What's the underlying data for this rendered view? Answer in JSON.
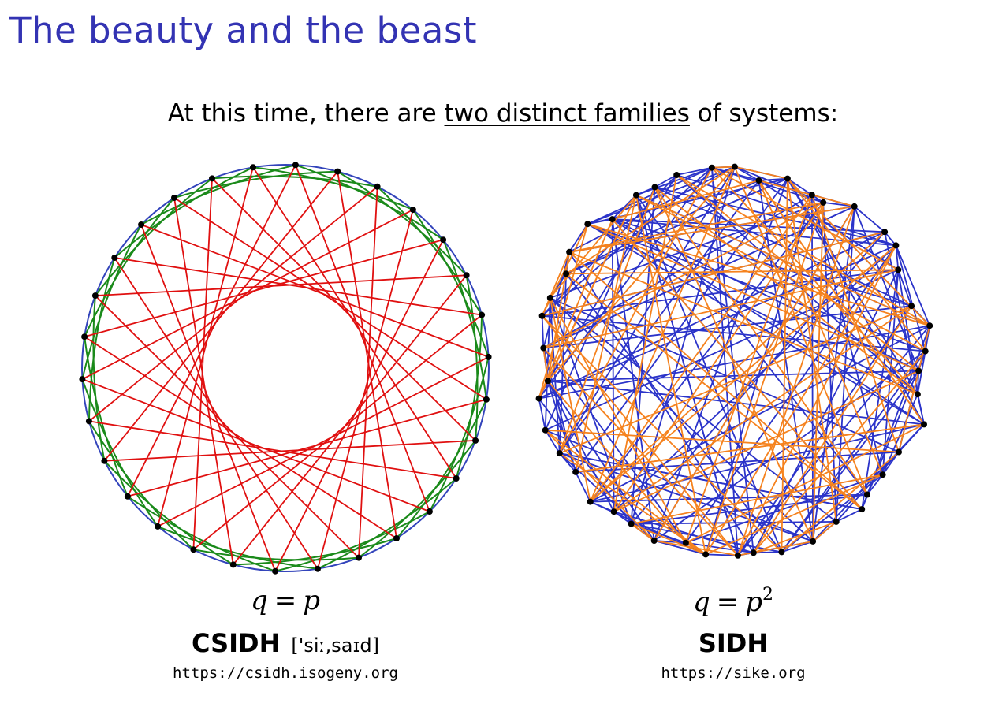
{
  "slide": {
    "title": "The beauty and the beast",
    "subtitle_prefix": "At this time, there are ",
    "subtitle_underlined": "two distinct families",
    "subtitle_suffix": " of systems:"
  },
  "left": {
    "equation_lhs": "q",
    "equation_op": "=",
    "equation_rhs": "p",
    "name": "CSIDH",
    "pronunciation": "['siː,saɪd]",
    "url": "https://csidh.isogeny.org",
    "vertex_count": 30,
    "colors": {
      "cycle": "#3344bb",
      "star": "#e01010",
      "green": "#1a8a1a",
      "vertex": "#000000"
    }
  },
  "right": {
    "equation_lhs": "q",
    "equation_op": "=",
    "equation_rhs": "p",
    "equation_exponent": "2",
    "name": "SIDH",
    "url": "https://sike.org",
    "vertex_count": 46,
    "colors": {
      "blue": "#2b33c9",
      "orange": "#f5821e",
      "vertex": "#000000"
    }
  }
}
